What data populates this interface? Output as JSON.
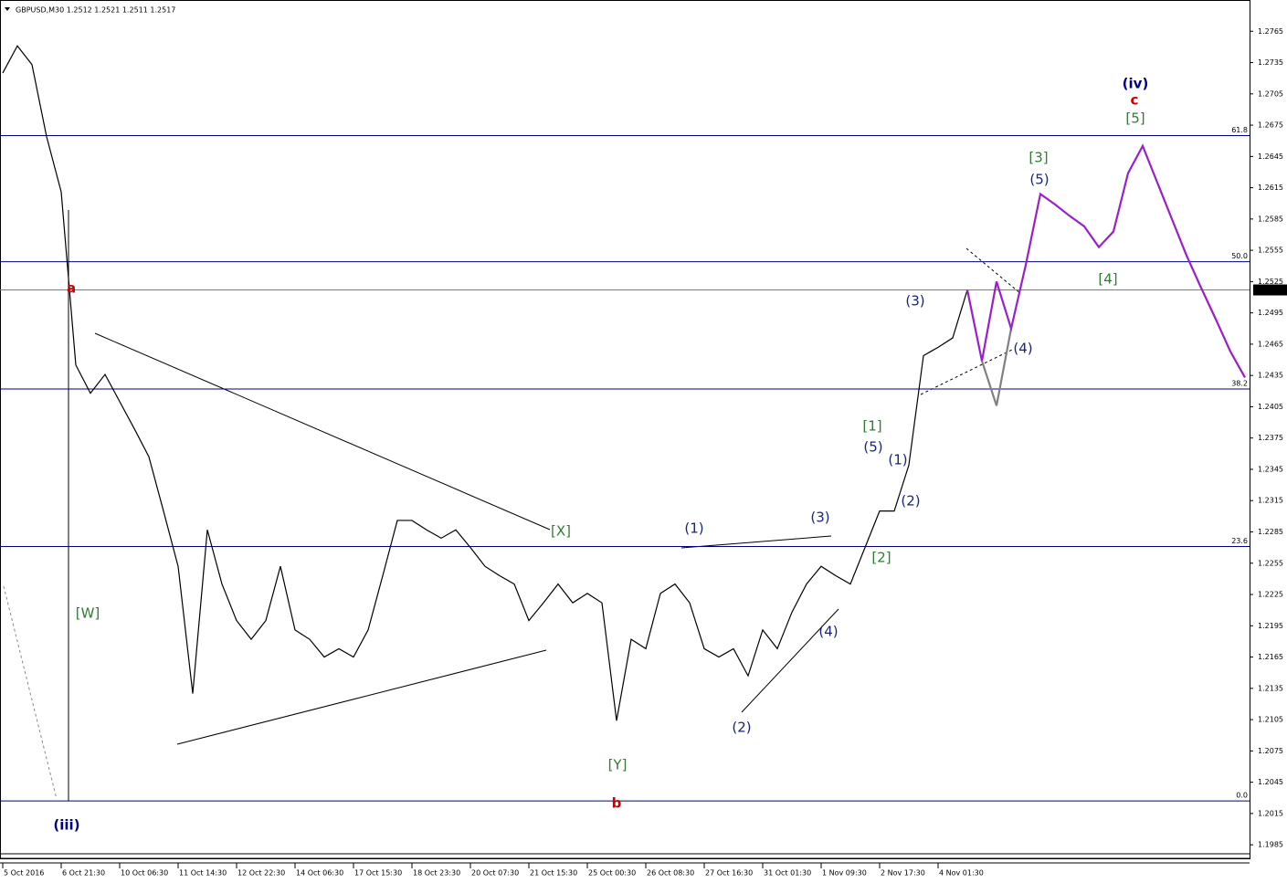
{
  "chart_data": {
    "type": "line",
    "title": "GBPUSD,M30  1.2512 1.2521 1.2511 1.2517",
    "categories": [
      "5 Oct 2016",
      null,
      null,
      null,
      "6 Oct 21:30",
      null,
      null,
      null,
      "10 Oct 06:30",
      null,
      null,
      null,
      "11 Oct 14:30",
      null,
      null,
      null,
      "12 Oct 22:30",
      null,
      null,
      null,
      "14 Oct 06:30",
      null,
      null,
      null,
      "17 Oct 15:30",
      null,
      null,
      null,
      "18 Oct 23:30",
      null,
      null,
      null,
      "20 Oct 07:30",
      null,
      null,
      null,
      "21 Oct 15:30",
      null,
      null,
      null,
      "25 Oct 00:30",
      null,
      null,
      null,
      "26 Oct 08:30",
      null,
      null,
      null,
      "27 Oct 16:30",
      null,
      null,
      null,
      "31 Oct 01:30",
      null,
      null,
      null,
      "1 Nov 09:30",
      null,
      null,
      null,
      "2 Nov 17:30",
      null,
      null,
      null,
      "4 Nov 01:30",
      null,
      null,
      null,
      null,
      null,
      null,
      null,
      null,
      null,
      null,
      null,
      null,
      null,
      null,
      null,
      null,
      null,
      null,
      null,
      null,
      null
    ],
    "series": [
      {
        "color": "#000000",
        "values": [
          1.2725,
          1.2751,
          1.2733,
          1.2664,
          1.2611,
          1.2445,
          1.2418,
          1.2436,
          1.241,
          1.2384,
          1.2357,
          1.2305,
          1.2252,
          1.213,
          1.2287,
          1.2235,
          1.22,
          1.2182,
          1.22,
          1.2252,
          1.2191,
          1.2182,
          1.2165,
          1.2173,
          1.2165,
          1.2191,
          1.2243,
          1.2296,
          1.2296,
          1.2287,
          1.2279,
          1.2287,
          1.227,
          1.2252,
          1.2243,
          1.2235,
          1.22,
          1.2217,
          1.2235,
          1.2217,
          1.2226,
          1.2217,
          1.2104,
          1.2182,
          1.2173,
          1.2226,
          1.2235,
          1.2217,
          1.2173,
          1.2165,
          1.2173,
          1.2147,
          1.2191,
          1.2173,
          1.2208,
          1.2235,
          1.2252,
          1.2243,
          1.2235,
          1.227,
          1.2305,
          1.2305,
          1.2349,
          1.2454,
          1.2462,
          1.2471,
          1.2517,
          null,
          null,
          null,
          null,
          null,
          null,
          null,
          null,
          null,
          null,
          null,
          null,
          null,
          null,
          null,
          null,
          null,
          null,
          null
        ]
      },
      {
        "color": "#808080",
        "values": [
          null,
          null,
          null,
          null,
          null,
          null,
          null,
          null,
          null,
          null,
          null,
          null,
          null,
          null,
          null,
          null,
          null,
          null,
          null,
          null,
          null,
          null,
          null,
          null,
          null,
          null,
          null,
          null,
          null,
          null,
          null,
          null,
          null,
          null,
          null,
          null,
          null,
          null,
          null,
          null,
          null,
          null,
          null,
          null,
          null,
          null,
          null,
          null,
          null,
          null,
          null,
          null,
          null,
          null,
          null,
          null,
          null,
          null,
          null,
          null,
          null,
          null,
          null,
          null,
          null,
          null,
          null,
          1.2449,
          1.2406,
          1.248,
          null,
          null,
          null,
          null,
          null,
          null,
          null,
          null,
          null,
          null,
          null,
          null,
          null,
          null,
          null,
          null
        ]
      },
      {
        "color": "#9b1fc9",
        "values": [
          null,
          null,
          null,
          null,
          null,
          null,
          null,
          null,
          null,
          null,
          null,
          null,
          null,
          null,
          null,
          null,
          null,
          null,
          null,
          null,
          null,
          null,
          null,
          null,
          null,
          null,
          null,
          null,
          null,
          null,
          null,
          null,
          null,
          null,
          null,
          null,
          null,
          null,
          null,
          null,
          null,
          null,
          null,
          null,
          null,
          null,
          null,
          null,
          null,
          null,
          null,
          null,
          null,
          null,
          null,
          null,
          null,
          null,
          null,
          null,
          null,
          null,
          null,
          null,
          null,
          null,
          1.2517,
          1.2449,
          1.2525,
          1.248,
          1.2541,
          1.2609,
          1.2599,
          1.2588,
          1.2578,
          1.2558,
          1.2573,
          1.2629,
          1.2655,
          1.262,
          1.2585,
          1.255,
          1.2519,
          1.2489,
          1.2458,
          1.2433
        ]
      }
    ],
    "ylim": [
      1.1972,
      1.2795
    ],
    "yticks": [
      1.2765,
      1.2735,
      1.2705,
      1.2675,
      1.2645,
      1.2615,
      1.2585,
      1.2555,
      1.2525,
      1.2495,
      1.2465,
      1.2435,
      1.2405,
      1.2375,
      1.2345,
      1.2315,
      1.2285,
      1.2255,
      1.2225,
      1.2195,
      1.2165,
      1.2135,
      1.2105,
      1.2075,
      1.2045,
      1.2015,
      1.1985
    ],
    "levels": [
      {
        "value": 1.2665,
        "label": "61.8"
      },
      {
        "value": 1.2544,
        "label": "50.0"
      },
      {
        "value": 1.2422,
        "label": "38.2"
      },
      {
        "value": 1.2271,
        "label": "23.6"
      },
      {
        "value": 1.2027,
        "label": "0.0"
      }
    ],
    "last_price": 1.2517,
    "annotations": [
      {
        "text": "(iii)",
        "color": "#000080"
      },
      {
        "text": "a",
        "color": "#cc0000"
      },
      {
        "text": "[W]",
        "color": "#2e7d32"
      },
      {
        "text": "[X]",
        "color": "#2e7d32"
      },
      {
        "text": "[Y]",
        "color": "#2e7d32"
      },
      {
        "text": "b",
        "color": "#cc0000"
      },
      {
        "text": "(1)",
        "color": "#1a237e"
      },
      {
        "text": "(2)",
        "color": "#1a237e"
      },
      {
        "text": "(3)",
        "color": "#1a237e"
      },
      {
        "text": "(4)",
        "color": "#1a237e"
      },
      {
        "text": "[1]",
        "color": "#2e7d32"
      },
      {
        "text": "(5)",
        "color": "#1a237e"
      },
      {
        "text": "(1)",
        "color": "#1a237e"
      },
      {
        "text": "(2)",
        "color": "#1a237e"
      },
      {
        "text": "[2]",
        "color": "#2e7d32"
      },
      {
        "text": "(3)",
        "color": "#1a237e"
      },
      {
        "text": "(4)",
        "color": "#1a237e"
      },
      {
        "text": "[3]",
        "color": "#2e7d32"
      },
      {
        "text": "(5)",
        "color": "#1a237e"
      },
      {
        "text": "[4]",
        "color": "#2e7d32"
      },
      {
        "text": "[5]",
        "color": "#2e7d32"
      },
      {
        "text": "c",
        "color": "#cc0000"
      },
      {
        "text": "(iv)",
        "color": "#000080"
      }
    ]
  }
}
